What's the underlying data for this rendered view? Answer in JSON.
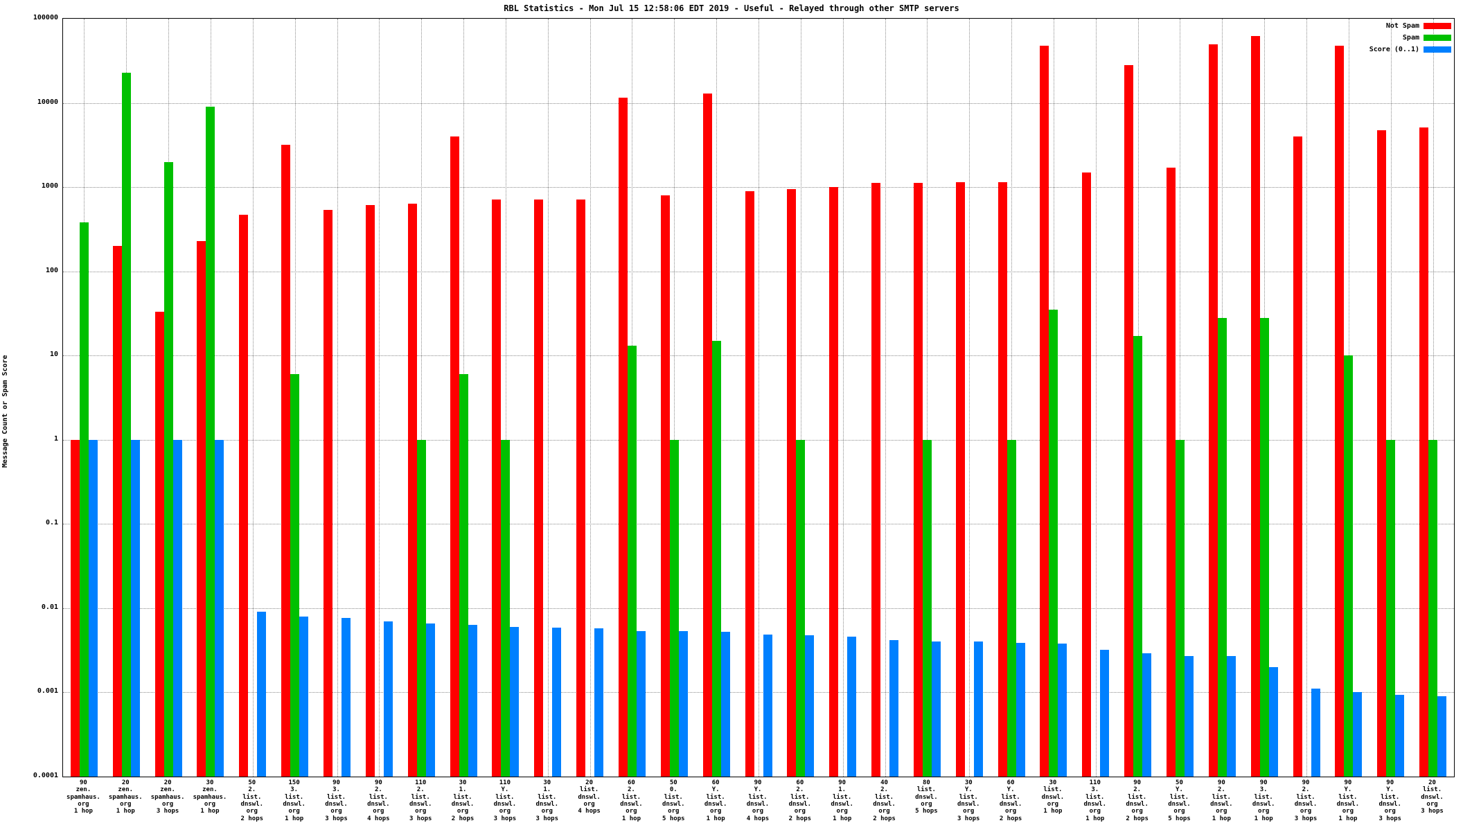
{
  "title": "RBL Statistics - Mon Jul 15 12:58:06 EDT 2019 - Useful - Relayed through other SMTP servers",
  "ylabel": "Message Count or Spam Score",
  "chart_data": {
    "type": "bar",
    "log_y": true,
    "grid": true,
    "legend_position": "top-right",
    "ylim": [
      0.0001,
      100000
    ],
    "ytick_labels": [
      "100000",
      "10000",
      "1000",
      "100",
      "10",
      "1",
      "0.1",
      "0.01",
      "0.001",
      "0.0001"
    ],
    "categories": [
      "90\nzen.\nspamhaus.\norg\n1 hop",
      "20\nzen.\nspamhaus.\norg\n1 hop",
      "20\nzen.\nspamhaus.\norg\n3 hops",
      "30\nzen.\nspamhaus.\norg\n1 hop",
      "50\n2.\nlist.\ndnswl.\norg\n2 hops",
      "150\n3.\nlist.\ndnswl.\norg\n1 hop",
      "90\n3.\nlist.\ndnswl.\norg\n3 hops",
      "90\n2.\nlist.\ndnswl.\norg\n4 hops",
      "110\n2.\nlist.\ndnswl.\norg\n3 hops",
      "30\n1.\nlist.\ndnswl.\norg\n2 hops",
      "110\nY.\nlist.\ndnswl.\norg\n3 hops",
      "30\n1.\nlist.\ndnswl.\norg\n3 hops",
      "20\nlist.\ndnswl.\norg\n4 hops",
      "60\n2.\nlist.\ndnswl.\norg\n1 hop",
      "50\n0.\nlist.\ndnswl.\norg\n5 hops",
      "60\nY.\nlist.\ndnswl.\norg\n1 hop",
      "90\nY.\nlist.\ndnswl.\norg\n4 hops",
      "60\n2.\nlist.\ndnswl.\norg\n2 hops",
      "90\n1.\nlist.\ndnswl.\norg\n1 hop",
      "40\n2.\nlist.\ndnswl.\norg\n2 hops",
      "80\nlist.\ndnswl.\norg\n5 hops",
      "30\nY.\nlist.\ndnswl.\norg\n3 hops",
      "60\nY.\nlist.\ndnswl.\norg\n2 hops",
      "30\nlist.\ndnswl.\norg\n1 hop",
      "110\n3.\nlist.\ndnswl.\norg\n1 hop",
      "90\n2.\nlist.\ndnswl.\norg\n2 hops",
      "50\nY.\nlist.\ndnswl.\norg\n5 hops",
      "90\n2.\nlist.\ndnswl.\norg\n1 hop",
      "90\n3.\nlist.\ndnswl.\norg\n1 hop",
      "90\n2.\nlist.\ndnswl.\norg\n3 hops",
      "90\nY.\nlist.\ndnswl.\norg\n1 hop",
      "90\nY.\nlist.\ndnswl.\norg\n3 hops",
      "20\nlist.\ndnswl.\norg\n3 hops"
    ],
    "series": [
      {
        "name": "Not Spam",
        "color": "#ff0000",
        "values": [
          1,
          200,
          33,
          230,
          470,
          3200,
          540,
          610,
          640,
          4000,
          710,
          710,
          710,
          11500,
          800,
          13000,
          900,
          950,
          1000,
          1120,
          1120,
          1150,
          1150,
          48000,
          1500,
          28000,
          1700,
          50000,
          62000,
          4000,
          48000,
          4700,
          5100
        ]
      },
      {
        "name": "Spam",
        "color": "#00c000",
        "values": [
          380,
          23000,
          2000,
          9000,
          null,
          6,
          null,
          null,
          1,
          6,
          1,
          null,
          null,
          13,
          1,
          15,
          null,
          1,
          null,
          null,
          1,
          null,
          1,
          35,
          null,
          17,
          1,
          28,
          28,
          null,
          10,
          1,
          1
        ]
      },
      {
        "name": "Score (0..1)",
        "color": "#0080ff",
        "values": [
          1,
          1,
          1,
          1,
          0.009,
          0.008,
          0.0076,
          0.007,
          0.0066,
          0.0063,
          0.006,
          0.0059,
          0.0058,
          0.0053,
          0.0053,
          0.0052,
          0.0049,
          0.0048,
          0.0046,
          0.0042,
          0.004,
          0.004,
          0.0039,
          0.0038,
          0.0032,
          0.0029,
          0.0027,
          0.0027,
          0.002,
          0.0011,
          0.001,
          0.00094,
          0.0009
        ]
      }
    ]
  }
}
